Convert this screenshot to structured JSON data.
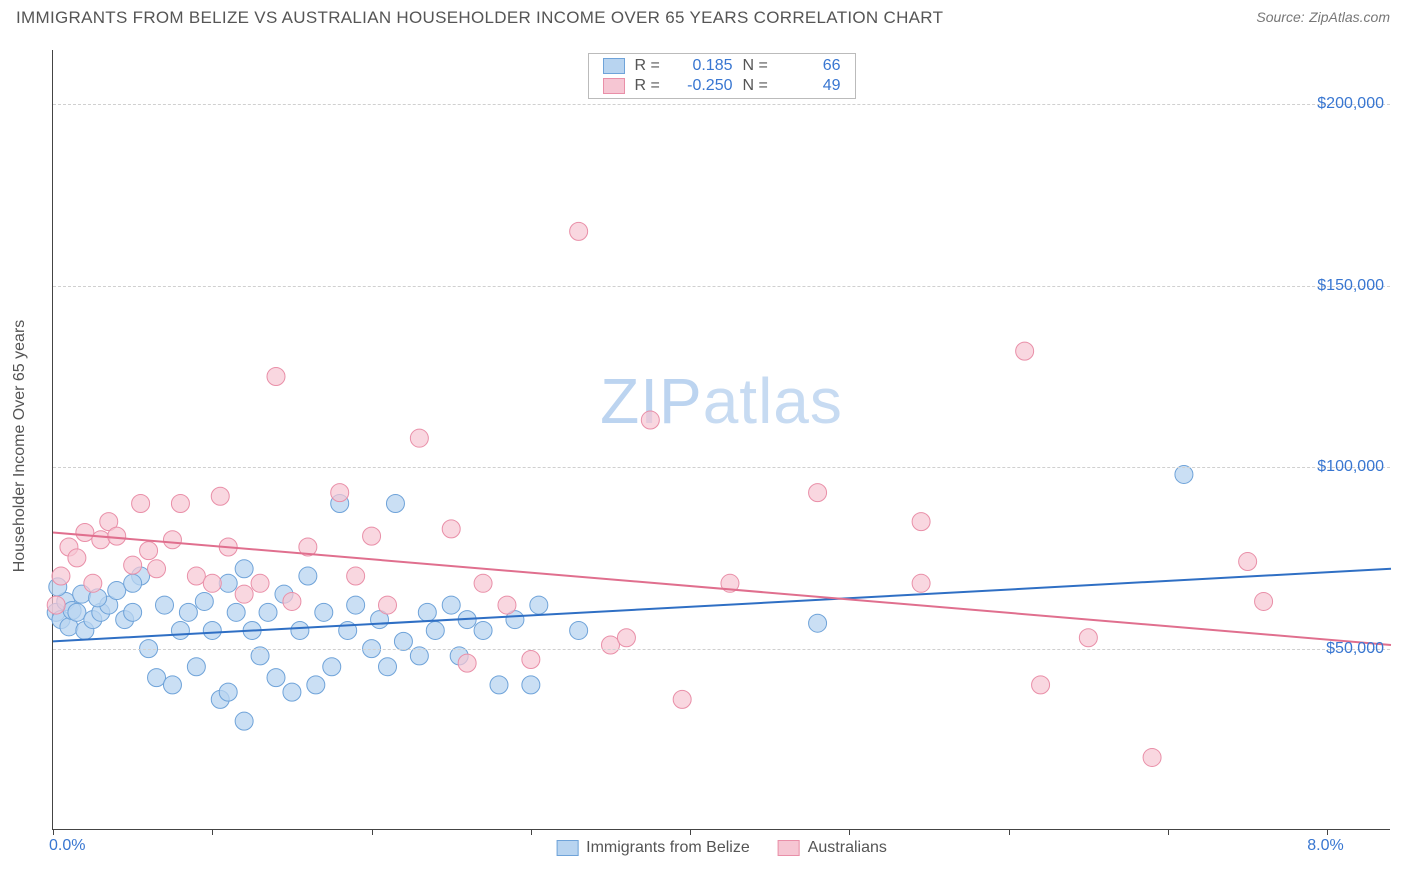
{
  "title": "IMMIGRANTS FROM BELIZE VS AUSTRALIAN HOUSEHOLDER INCOME OVER 65 YEARS CORRELATION CHART",
  "source_label": "Source:",
  "source_value": "ZipAtlas.com",
  "y_axis_label": "Householder Income Over 65 years",
  "watermark": "ZIPatlas",
  "chart": {
    "type": "scatter",
    "xlim": [
      0,
      8.4
    ],
    "ylim": [
      0,
      215000
    ],
    "x_ticks": [
      0,
      1,
      2,
      3,
      4,
      5,
      6,
      7,
      8
    ],
    "x_tick_labels": {
      "0": "0.0%",
      "8": "8.0%"
    },
    "y_gridlines": [
      50000,
      100000,
      150000,
      200000
    ],
    "y_tick_labels": {
      "50000": "$50,000",
      "100000": "$100,000",
      "150000": "$150,000",
      "200000": "$200,000"
    },
    "grid_color": "#d0d0d0",
    "axis_color": "#444444",
    "background_color": "#ffffff",
    "marker_radius": 9,
    "series": [
      {
        "name": "Immigrants from Belize",
        "fill": "#b8d4f0",
        "stroke": "#6fa3d9",
        "fill_opacity": 0.75,
        "R_label": "R =",
        "R": "0.185",
        "N_label": "N =",
        "N": "66",
        "trend": {
          "y_at_xmin": 52000,
          "y_at_xmax": 72000,
          "color": "#2f6fc4",
          "width": 2
        },
        "points": [
          [
            0.02,
            60000
          ],
          [
            0.05,
            58000
          ],
          [
            0.08,
            63000
          ],
          [
            0.1,
            56000
          ],
          [
            0.12,
            60500
          ],
          [
            0.03,
            67000
          ],
          [
            0.15,
            60000
          ],
          [
            0.18,
            65000
          ],
          [
            0.2,
            55000
          ],
          [
            0.25,
            58000
          ],
          [
            0.3,
            60000
          ],
          [
            0.35,
            62000
          ],
          [
            0.4,
            66000
          ],
          [
            0.45,
            58000
          ],
          [
            0.5,
            60000
          ],
          [
            0.55,
            70000
          ],
          [
            0.6,
            50000
          ],
          [
            0.65,
            42000
          ],
          [
            0.5,
            68000
          ],
          [
            0.7,
            62000
          ],
          [
            0.75,
            40000
          ],
          [
            0.8,
            55000
          ],
          [
            0.85,
            60000
          ],
          [
            0.9,
            45000
          ],
          [
            0.95,
            63000
          ],
          [
            1.0,
            55000
          ],
          [
            1.05,
            36000
          ],
          [
            1.1,
            68000
          ],
          [
            1.1,
            38000
          ],
          [
            1.15,
            60000
          ],
          [
            1.2,
            72000
          ],
          [
            1.2,
            30000
          ],
          [
            1.25,
            55000
          ],
          [
            1.3,
            48000
          ],
          [
            1.35,
            60000
          ],
          [
            1.4,
            42000
          ],
          [
            1.45,
            65000
          ],
          [
            1.5,
            38000
          ],
          [
            1.55,
            55000
          ],
          [
            1.6,
            70000
          ],
          [
            1.65,
            40000
          ],
          [
            1.7,
            60000
          ],
          [
            1.8,
            90000
          ],
          [
            1.75,
            45000
          ],
          [
            1.85,
            55000
          ],
          [
            1.9,
            62000
          ],
          [
            2.0,
            50000
          ],
          [
            2.05,
            58000
          ],
          [
            2.15,
            90000
          ],
          [
            2.1,
            45000
          ],
          [
            2.2,
            52000
          ],
          [
            2.3,
            48000
          ],
          [
            2.35,
            60000
          ],
          [
            2.4,
            55000
          ],
          [
            2.5,
            62000
          ],
          [
            2.55,
            48000
          ],
          [
            2.6,
            58000
          ],
          [
            2.7,
            55000
          ],
          [
            2.8,
            40000
          ],
          [
            2.9,
            58000
          ],
          [
            3.0,
            40000
          ],
          [
            3.05,
            62000
          ],
          [
            3.3,
            55000
          ],
          [
            4.8,
            57000
          ],
          [
            7.1,
            98000
          ],
          [
            0.28,
            64000
          ]
        ]
      },
      {
        "name": "Australians",
        "fill": "#f6c6d3",
        "stroke": "#e98fa8",
        "fill_opacity": 0.7,
        "R_label": "R =",
        "R": "-0.250",
        "N_label": "N =",
        "N": "49",
        "trend": {
          "y_at_xmin": 82000,
          "y_at_xmax": 51000,
          "color": "#e06f8e",
          "width": 2
        },
        "points": [
          [
            0.02,
            62000
          ],
          [
            0.05,
            70000
          ],
          [
            0.1,
            78000
          ],
          [
            0.15,
            75000
          ],
          [
            0.2,
            82000
          ],
          [
            0.25,
            68000
          ],
          [
            0.3,
            80000
          ],
          [
            0.35,
            85000
          ],
          [
            0.4,
            81000
          ],
          [
            0.5,
            73000
          ],
          [
            0.55,
            90000
          ],
          [
            0.6,
            77000
          ],
          [
            0.65,
            72000
          ],
          [
            0.75,
            80000
          ],
          [
            0.8,
            90000
          ],
          [
            0.9,
            70000
          ],
          [
            1.0,
            68000
          ],
          [
            1.05,
            92000
          ],
          [
            1.1,
            78000
          ],
          [
            1.2,
            65000
          ],
          [
            1.3,
            68000
          ],
          [
            1.4,
            125000
          ],
          [
            1.5,
            63000
          ],
          [
            1.6,
            78000
          ],
          [
            1.8,
            93000
          ],
          [
            1.9,
            70000
          ],
          [
            2.0,
            81000
          ],
          [
            2.3,
            108000
          ],
          [
            2.1,
            62000
          ],
          [
            2.5,
            83000
          ],
          [
            2.6,
            46000
          ],
          [
            2.7,
            68000
          ],
          [
            2.85,
            62000
          ],
          [
            3.0,
            47000
          ],
          [
            3.3,
            165000
          ],
          [
            3.5,
            51000
          ],
          [
            3.6,
            53000
          ],
          [
            3.75,
            113000
          ],
          [
            3.95,
            36000
          ],
          [
            4.25,
            68000
          ],
          [
            4.8,
            93000
          ],
          [
            5.45,
            85000
          ],
          [
            5.45,
            68000
          ],
          [
            6.1,
            132000
          ],
          [
            6.2,
            40000
          ],
          [
            6.5,
            53000
          ],
          [
            6.9,
            20000
          ],
          [
            7.5,
            74000
          ],
          [
            7.6,
            63000
          ]
        ]
      }
    ]
  },
  "legend_bottom": [
    {
      "label": "Immigrants from Belize",
      "fill": "#b8d4f0",
      "stroke": "#6fa3d9"
    },
    {
      "label": "Australians",
      "fill": "#f6c6d3",
      "stroke": "#e98fa8"
    }
  ]
}
